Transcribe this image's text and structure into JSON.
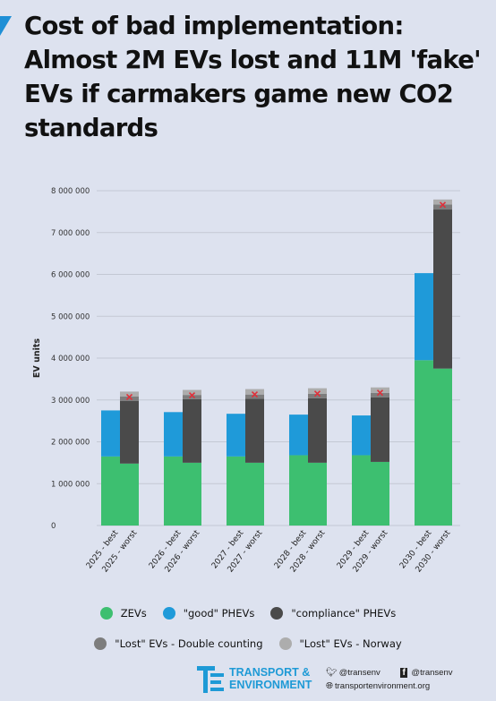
{
  "header": {
    "title_lines": [
      "Cost of bad implementation:",
      "Almost 2M EVs lost and 11M  'fake'",
      "EVs if carmakers game new CO2",
      "standards"
    ]
  },
  "chart_data": {
    "type": "bar",
    "stacked": true,
    "title": "",
    "ylabel": "EV units",
    "xlabel": "",
    "ylim": [
      0,
      8000000
    ],
    "yticks": [
      "0",
      "1 000 000",
      "2 000 000",
      "3 000 000",
      "4 000 000",
      "5 000 000",
      "6 000 000",
      "7 000 000",
      "8 000 000"
    ],
    "grid": true,
    "categories": [
      "2025 - best",
      "2025 - worst",
      "2026 - best",
      "2026 - worst",
      "2027 - best",
      "2027 - worst",
      "2028 - best",
      "2028 - worst",
      "2029 - best",
      "2029 - worst",
      "2030 - best",
      "2030 - worst"
    ],
    "series": [
      {
        "name": "ZEVs",
        "color": "#3dbf70",
        "values": [
          1650000,
          1480000,
          1650000,
          1500000,
          1650000,
          1500000,
          1680000,
          1500000,
          1680000,
          1520000,
          3950000,
          3750000
        ]
      },
      {
        "name": "\"good\" PHEVs",
        "color": "#1f9ad9",
        "values": [
          1100000,
          0,
          1060000,
          0,
          1020000,
          0,
          970000,
          0,
          950000,
          0,
          2080000,
          0
        ]
      },
      {
        "name": "\"compliance\" PHEVs",
        "color": "#4a4a4a",
        "values": [
          0,
          1500000,
          0,
          1520000,
          0,
          1530000,
          0,
          1540000,
          0,
          1540000,
          0,
          3800000
        ]
      },
      {
        "name": "\"Lost\" EVs - Double counting",
        "color": "#7d7d7d",
        "values": [
          0,
          100000,
          0,
          100000,
          0,
          100000,
          0,
          110000,
          0,
          110000,
          0,
          120000
        ]
      },
      {
        "name": "\"Lost\" EVs - Norway",
        "color": "#adadad",
        "values": [
          0,
          120000,
          0,
          120000,
          0,
          130000,
          0,
          130000,
          0,
          130000,
          0,
          120000
        ]
      }
    ],
    "cross_color": "#e0303a"
  },
  "legend": {
    "row1": [
      {
        "label": "ZEVs",
        "color": "#3dbf70"
      },
      {
        "label": "\"good\" PHEVs",
        "color": "#1f9ad9"
      },
      {
        "label": "\"compliance\" PHEVs",
        "color": "#4a4a4a"
      }
    ],
    "row2": [
      {
        "label": "\"Lost\" EVs - Double counting",
        "color": "#7d7d7d"
      },
      {
        "label": "\"Lost\" EVs - Norway",
        "color": "#adadad"
      }
    ]
  },
  "footer": {
    "org_line1": "TRANSPORT &",
    "org_line2": "ENVIRONMENT",
    "twitter": "@transenv",
    "facebook": "@transenv",
    "website": "transportenvironment.org",
    "brand_color": "#1e9ad6"
  }
}
